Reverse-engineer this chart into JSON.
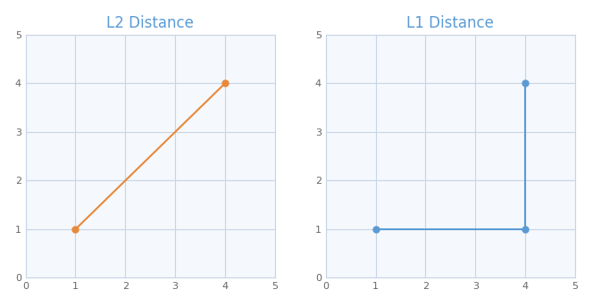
{
  "point1": [
    1,
    1
  ],
  "point2": [
    4,
    4
  ],
  "l2_color": "#E8893A",
  "l1_color": "#5B9BD5",
  "title_color": "#5B9BD5",
  "title_l2": "L2 Distance",
  "title_l1": "L1 Distance",
  "xlim": [
    0,
    5
  ],
  "ylim": [
    0,
    5
  ],
  "xticks": [
    0,
    1,
    2,
    3,
    4,
    5
  ],
  "yticks": [
    0,
    1,
    2,
    3,
    4,
    5
  ],
  "grid_color": "#C8D4E8",
  "spine_color": "#C8D4E8",
  "bg_color": "#FFFFFF",
  "axes_bg": "#F5F8FC",
  "title_fontsize": 12,
  "tick_fontsize": 8,
  "tick_color": "#666666",
  "marker_size": 5,
  "line_width": 1.5
}
